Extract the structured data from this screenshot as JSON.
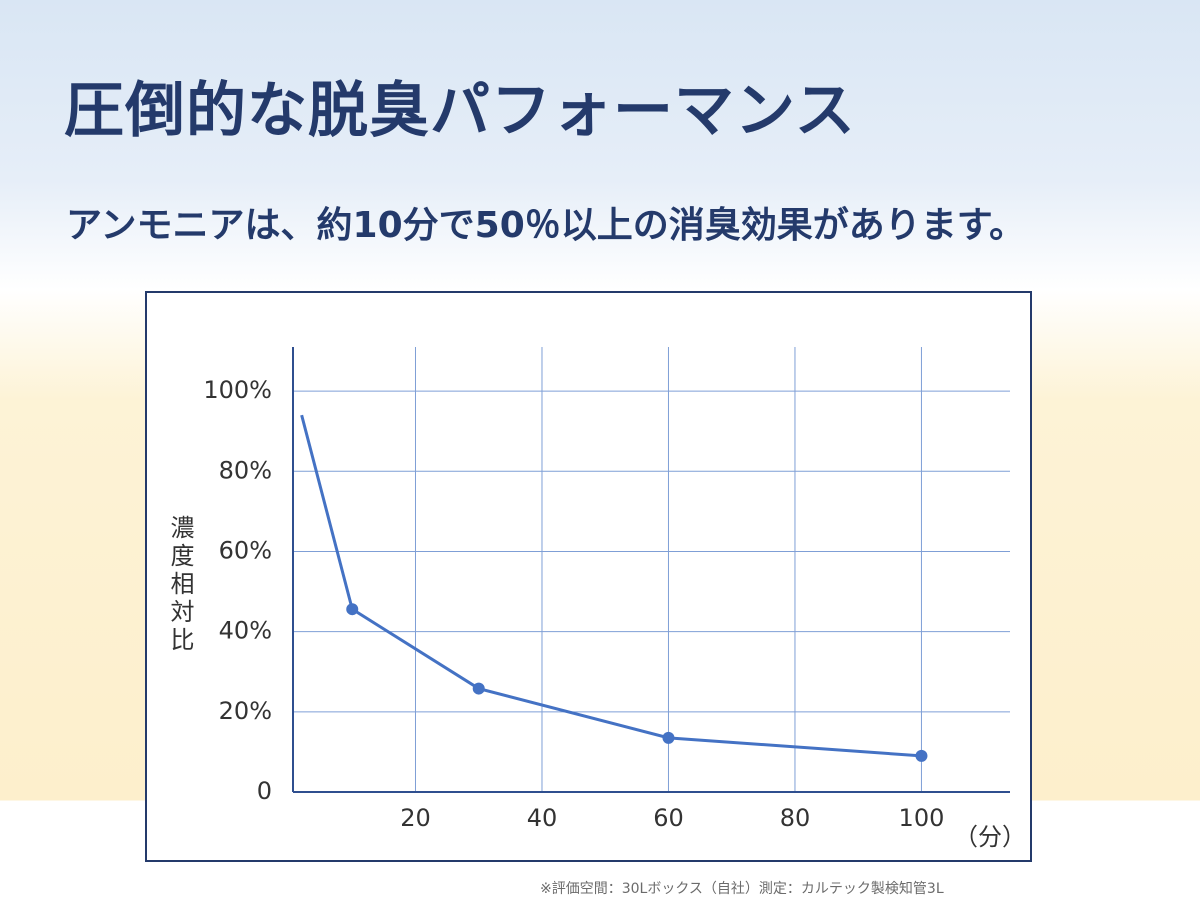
{
  "slide": {
    "title": "圧倒的な脱臭パフォーマンス",
    "subtitle": "アンモニアは、約10分で50％以上の消臭効果があります。",
    "note": "※評価空間：30Lボックス（自社）測定：カルテック製検知管3L"
  },
  "chart_data": {
    "type": "line",
    "y_label": "濃度相対比",
    "x_label": "（分）",
    "x": [
      2,
      10,
      30,
      60,
      100
    ],
    "series": [
      {
        "color": "#4472c4",
        "values": [
          94,
          45.6,
          25.8,
          13.5,
          9
        ],
        "markers": [
          false,
          true,
          true,
          true,
          true
        ]
      }
    ],
    "xlim": [
      0,
      114
    ],
    "xticks": [
      20,
      40,
      60,
      80,
      100
    ],
    "ylim": [
      0,
      111
    ],
    "yticks": [
      0,
      {
        "value": 20,
        "label": "20%"
      },
      {
        "value": 40,
        "label": "40%"
      },
      {
        "value": 60,
        "label": "60%"
      },
      {
        "value": 80,
        "label": "80%"
      },
      {
        "value": 100,
        "label": "100%"
      }
    ],
    "grid": true
  }
}
